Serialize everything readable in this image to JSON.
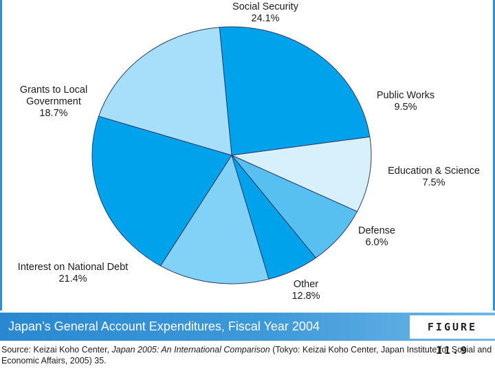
{
  "chart_data": {
    "type": "pie",
    "title": "Japan’s General Account Expenditures, Fiscal Year 2004",
    "figure_label": "FIGURE 11.9",
    "slices": [
      {
        "name": "Social Security",
        "value_label": "24.1%",
        "value": 24.1,
        "color": "#00a2ec"
      },
      {
        "name": "Public Works",
        "value_label": "9.5%",
        "value": 9.5,
        "color": "#d6f0fc"
      },
      {
        "name": "Education & Science",
        "value_label": "7.5%",
        "value": 7.5,
        "color": "#58bff1"
      },
      {
        "name": "Defense",
        "value_label": "6.0%",
        "value": 6.0,
        "color": "#00a2ec"
      },
      {
        "name": "Other",
        "value_label": "12.8%",
        "value": 12.8,
        "color": "#82d2f7"
      },
      {
        "name": "Interest on National Debt",
        "value_label": "21.4%",
        "value": 21.4,
        "color": "#00a2ec"
      },
      {
        "name": "Grants to Local Government",
        "value_label": "18.7%",
        "value": 18.7,
        "color": "#a7def8"
      }
    ],
    "label_lines": {
      "social_security": "Social Security",
      "public_works": "Public Works",
      "education": "Education & Science",
      "defense": "Defense",
      "other": "Other",
      "interest_1": "Interest on National Debt",
      "grants_1": "Grants to Local",
      "grants_2": "Government"
    }
  },
  "source": {
    "prefix": "Source: Keizai Koho Center, ",
    "title_italic": "Japan 2005: An International Comparison",
    "suffix": " (Tokyo: Keizai Koho Center, Japan Institute for Social and Economic Affairs, 2005) 35."
  },
  "colors": {
    "banner": "#3a94d6",
    "outline": "#2a3a66",
    "edge": "#2f8fd8"
  }
}
